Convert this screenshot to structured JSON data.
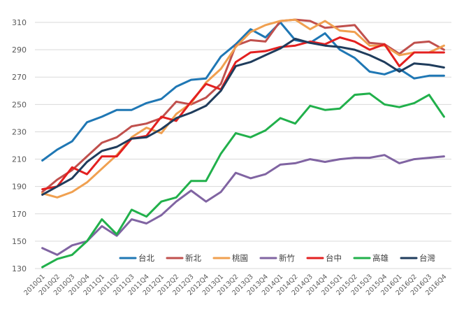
{
  "chart_data": {
    "type": "line",
    "title": "",
    "xlabel": "",
    "ylabel": "",
    "ylim": [
      130,
      310
    ],
    "yticks": [
      130,
      150,
      170,
      190,
      210,
      230,
      250,
      270,
      290,
      310
    ],
    "grid": "horizontal",
    "legend_position": "bottom-right",
    "categories": [
      "2010Q1",
      "2010Q2",
      "2010Q3",
      "2010Q4",
      "2011Q1",
      "2011Q2",
      "2011Q3",
      "2011Q4",
      "2012Q1",
      "2012Q2",
      "2012Q3",
      "2012Q4",
      "2013Q1",
      "2013Q2",
      "2013Q3",
      "2013Q4",
      "2014Q1",
      "2014Q2",
      "2014Q3",
      "2014Q4",
      "2015Q1",
      "2015Q2",
      "2015Q3",
      "2015Q4",
      "2016Q1",
      "2016Q2",
      "2016Q3",
      "2016Q4"
    ],
    "series": [
      {
        "name": "台北",
        "color": "#1f77b4",
        "values": [
          209,
          217,
          223,
          237,
          241,
          246,
          246,
          251,
          254,
          263,
          268,
          269,
          285,
          294,
          305,
          299,
          310,
          297,
          295,
          302,
          290,
          284,
          274,
          272,
          276,
          269,
          271,
          271
        ]
      },
      {
        "name": "新北",
        "color": "#c0504d",
        "values": [
          186,
          195,
          202,
          212,
          222,
          226,
          234,
          236,
          240,
          252,
          250,
          255,
          265,
          293,
          297,
          296,
          311,
          312,
          311,
          306,
          307,
          308,
          295,
          294,
          287,
          295,
          296,
          290
        ]
      },
      {
        "name": "桃園",
        "color": "#f0a050",
        "values": [
          185,
          182,
          186,
          193,
          203,
          213,
          226,
          233,
          229,
          243,
          251,
          266,
          276,
          292,
          303,
          308,
          311,
          312,
          305,
          311,
          304,
          303,
          293,
          293,
          286,
          288,
          288,
          293
        ]
      },
      {
        "name": "新竹",
        "color": "#8064a2",
        "values": [
          145,
          140,
          147,
          150,
          161,
          154,
          166,
          163,
          169,
          179,
          187,
          179,
          186,
          200,
          196,
          199,
          206,
          207,
          210,
          208,
          210,
          211,
          211,
          213,
          207,
          210,
          211,
          212
        ]
      },
      {
        "name": "台中",
        "color": "#e32020",
        "values": [
          188,
          190,
          204,
          199,
          212,
          212,
          225,
          227,
          241,
          238,
          252,
          265,
          261,
          281,
          288,
          289,
          292,
          293,
          296,
          294,
          299,
          296,
          290,
          294,
          278,
          288,
          288,
          288
        ]
      },
      {
        "name": "高雄",
        "color": "#21b04b",
        "values": [
          131,
          137,
          140,
          150,
          166,
          155,
          173,
          168,
          179,
          182,
          194,
          194,
          214,
          229,
          226,
          231,
          240,
          236,
          249,
          246,
          247,
          257,
          258,
          250,
          248,
          251,
          257,
          241
        ]
      },
      {
        "name": "台灣",
        "color": "#1f3c5c",
        "values": [
          184,
          190,
          196,
          208,
          216,
          219,
          225,
          226,
          232,
          240,
          244,
          249,
          260,
          278,
          281,
          286,
          291,
          298,
          295,
          293,
          292,
          290,
          286,
          281,
          274,
          280,
          279,
          277
        ]
      }
    ]
  }
}
